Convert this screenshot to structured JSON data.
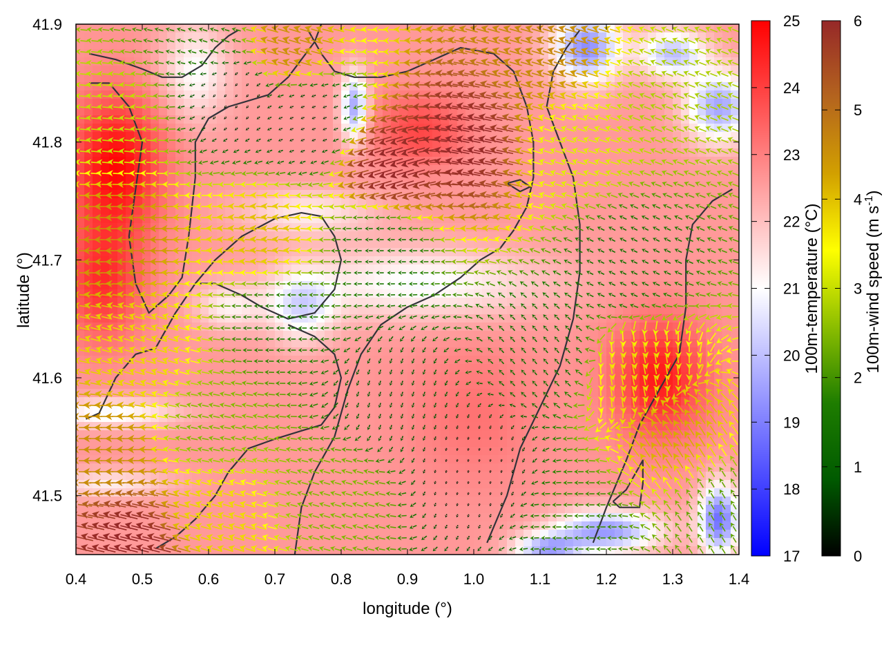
{
  "chart_data": {
    "type": "heatmap",
    "xlabel": "longitude (°)",
    "ylabel": "latitude (°)",
    "xlim": [
      0.4,
      1.4
    ],
    "ylim": [
      41.45,
      41.9
    ],
    "xticks": [
      "0.4",
      "0.5",
      "0.6",
      "0.7",
      "0.8",
      "0.9",
      "1.0",
      "1.1",
      "1.2",
      "1.3",
      "1.4"
    ],
    "yticks": [
      "41.5",
      "41.6",
      "41.7",
      "41.8",
      "41.9"
    ],
    "temperature_colorbar": {
      "label": "100m-temperature (°C)",
      "range": [
        17,
        25
      ],
      "ticks": [
        "17",
        "18",
        "19",
        "20",
        "21",
        "22",
        "23",
        "24",
        "25"
      ],
      "colors": {
        "low": "#0000ff",
        "mid": "#ffffff",
        "high": "#ff0000"
      }
    },
    "wind_colorbar": {
      "label": "100m-wind speed (m s",
      "label_superscript": "-1",
      "label_close": ")",
      "range": [
        0,
        6
      ],
      "ticks": [
        "0",
        "1",
        "2",
        "3",
        "4",
        "5",
        "6"
      ],
      "colors": [
        "#000000",
        "#005a00",
        "#1e7d00",
        "#8cbe00",
        "#ffff00",
        "#d2a000",
        "#b4641e",
        "#962828"
      ]
    },
    "temperature_field": {
      "base_c": 22.6,
      "blobs": [
        {
          "lon": 0.46,
          "lat": 41.78,
          "w": 0.07,
          "h": 0.06,
          "dT": 2.3
        },
        {
          "lon": 0.44,
          "lat": 41.68,
          "w": 0.06,
          "h": 0.05,
          "dT": 1.6
        },
        {
          "lon": 1.28,
          "lat": 41.6,
          "w": 0.07,
          "h": 0.05,
          "dT": 2.0
        },
        {
          "lon": 0.92,
          "lat": 41.81,
          "w": 0.07,
          "h": 0.03,
          "dT": 1.3
        },
        {
          "lon": 1.0,
          "lat": 41.57,
          "w": 0.1,
          "h": 0.06,
          "dT": 0.6
        },
        {
          "lon": 0.58,
          "lat": 41.86,
          "w": 0.05,
          "h": 0.04,
          "dT": -1.6
        },
        {
          "lon": 0.92,
          "lat": 41.68,
          "w": 0.18,
          "h": 0.03,
          "dT": -1.7
        },
        {
          "lon": 0.75,
          "lat": 41.74,
          "w": 0.1,
          "h": 0.02,
          "dT": -1.3
        },
        {
          "lon": 0.74,
          "lat": 41.66,
          "w": 0.05,
          "h": 0.03,
          "dT": -2.0
        },
        {
          "lon": 0.45,
          "lat": 41.57,
          "w": 0.1,
          "h": 0.012,
          "dT": -1.8
        },
        {
          "lon": 0.45,
          "lat": 41.51,
          "w": 0.09,
          "h": 0.012,
          "dT": -1.3
        },
        {
          "lon": 1.17,
          "lat": 41.88,
          "w": 0.05,
          "h": 0.03,
          "dT": -3.4
        },
        {
          "lon": 1.37,
          "lat": 41.83,
          "w": 0.05,
          "h": 0.03,
          "dT": -3.0
        },
        {
          "lon": 1.3,
          "lat": 41.875,
          "w": 0.05,
          "h": 0.02,
          "dT": -2.6
        },
        {
          "lon": 0.82,
          "lat": 41.83,
          "w": 0.02,
          "h": 0.03,
          "dT": -3.0
        },
        {
          "lon": 1.2,
          "lat": 41.47,
          "w": 0.08,
          "h": 0.018,
          "dT": -3.2
        },
        {
          "lon": 1.37,
          "lat": 41.48,
          "w": 0.03,
          "h": 0.03,
          "dT": -3.8
        },
        {
          "lon": 1.11,
          "lat": 41.455,
          "w": 0.05,
          "h": 0.012,
          "dT": -2.8
        },
        {
          "lon": 0.63,
          "lat": 41.66,
          "w": 0.05,
          "h": 0.02,
          "dT": -1.3
        }
      ]
    },
    "wind_field": {
      "vectors": [
        {
          "lon": 0.49,
          "lat": 41.46,
          "speed": 6.0,
          "u": -1.0,
          "v": 0.25
        },
        {
          "lon": 0.45,
          "lat": 41.54,
          "speed": 4.5,
          "u": -1.0,
          "v": 0.0
        },
        {
          "lon": 0.5,
          "lat": 41.62,
          "speed": 3.8,
          "u": -1.0,
          "v": 0.3
        },
        {
          "lon": 0.47,
          "lat": 41.72,
          "speed": 4.5,
          "u": -1.0,
          "v": 0.0
        },
        {
          "lon": 0.46,
          "lat": 41.82,
          "speed": 3.0,
          "u": -1.0,
          "v": 0.1
        },
        {
          "lon": 0.7,
          "lat": 41.65,
          "speed": 1.7,
          "u": -1.0,
          "v": 0.0
        },
        {
          "lon": 0.68,
          "lat": 41.72,
          "speed": 4.0,
          "u": -1.0,
          "v": 0.1
        },
        {
          "lon": 0.64,
          "lat": 41.84,
          "speed": 0.3,
          "u": -0.5,
          "v": -0.5
        },
        {
          "lon": 0.75,
          "lat": 41.82,
          "speed": 0.5,
          "u": -0.7,
          "v": -0.3
        },
        {
          "lon": 0.88,
          "lat": 41.78,
          "speed": 6.0,
          "u": -1.0,
          "v": -0.3
        },
        {
          "lon": 0.99,
          "lat": 41.8,
          "speed": 6.0,
          "u": -1.0,
          "v": 0.2
        },
        {
          "lon": 0.86,
          "lat": 41.71,
          "speed": 1.5,
          "u": -1.0,
          "v": 0.0
        },
        {
          "lon": 0.88,
          "lat": 41.58,
          "speed": 0.8,
          "u": -0.3,
          "v": -0.9
        },
        {
          "lon": 1.0,
          "lat": 41.52,
          "speed": 0.2,
          "u": -0.2,
          "v": -0.9
        },
        {
          "lon": 1.1,
          "lat": 41.62,
          "speed": 1.3,
          "u": -0.6,
          "v": 0.7
        },
        {
          "lon": 1.25,
          "lat": 41.6,
          "speed": 3.8,
          "u": 0.2,
          "v": -1.0
        },
        {
          "lon": 1.3,
          "lat": 41.55,
          "speed": 4.2,
          "u": -0.5,
          "v": 0.8
        },
        {
          "lon": 1.23,
          "lat": 41.7,
          "speed": 1.4,
          "u": -1.0,
          "v": 0.5
        },
        {
          "lon": 1.15,
          "lat": 41.79,
          "speed": 3.2,
          "u": -1.0,
          "v": 0.3
        },
        {
          "lon": 1.3,
          "lat": 41.84,
          "speed": 2.8,
          "u": -1.0,
          "v": 0.4
        },
        {
          "lon": 1.1,
          "lat": 41.88,
          "speed": 4.6,
          "u": -1.0,
          "v": 0.3
        },
        {
          "lon": 0.72,
          "lat": 41.88,
          "speed": 4.5,
          "u": -1.0,
          "v": 0.3
        },
        {
          "lon": 0.6,
          "lat": 41.89,
          "speed": 1.8,
          "u": -1.0,
          "v": 0.3
        },
        {
          "lon": 0.8,
          "lat": 41.5,
          "speed": 2.5,
          "u": -1.0,
          "v": 0.3
        },
        {
          "lon": 1.15,
          "lat": 41.48,
          "speed": 1.9,
          "u": -1.0,
          "v": 0.0
        },
        {
          "lon": 1.37,
          "lat": 41.49,
          "speed": 2.2,
          "u": -0.5,
          "v": 0.8
        },
        {
          "lon": 0.6,
          "lat": 41.56,
          "speed": 2.5,
          "u": -1.0,
          "v": 0.2
        },
        {
          "lon": 0.6,
          "lat": 41.48,
          "speed": 3.8,
          "u": -1.0,
          "v": 0.3
        }
      ]
    },
    "contours": [
      [
        [
          0.415,
          41.565
        ],
        [
          0.435,
          41.57
        ],
        [
          0.46,
          41.6
        ],
        [
          0.49,
          41.62
        ],
        [
          0.52,
          41.625
        ],
        [
          0.55,
          41.655
        ],
        [
          0.58,
          41.68
        ],
        [
          0.61,
          41.7
        ],
        [
          0.65,
          41.72
        ],
        [
          0.7,
          41.735
        ],
        [
          0.74,
          41.74
        ],
        [
          0.77,
          41.737
        ],
        [
          0.79,
          41.72
        ],
        [
          0.8,
          41.7
        ],
        [
          0.79,
          41.675
        ],
        [
          0.76,
          41.655
        ],
        [
          0.72,
          41.65
        ],
        [
          0.68,
          41.66
        ],
        [
          0.65,
          41.67
        ],
        [
          0.61,
          41.68
        ],
        [
          0.58,
          41.68
        ]
      ],
      [
        [
          0.72,
          41.645
        ],
        [
          0.76,
          41.635
        ],
        [
          0.79,
          41.62
        ],
        [
          0.8,
          41.6
        ],
        [
          0.79,
          41.575
        ],
        [
          0.77,
          41.56
        ],
        [
          0.74,
          41.555
        ],
        [
          0.7,
          41.548
        ],
        [
          0.66,
          41.54
        ],
        [
          0.63,
          41.52
        ],
        [
          0.61,
          41.5
        ],
        [
          0.58,
          41.48
        ],
        [
          0.55,
          41.465
        ],
        [
          0.52,
          41.455
        ]
      ],
      [
        [
          0.42,
          41.875
        ],
        [
          0.46,
          41.87
        ],
        [
          0.5,
          41.862
        ],
        [
          0.53,
          41.855
        ],
        [
          0.56,
          41.855
        ],
        [
          0.59,
          41.865
        ],
        [
          0.61,
          41.88
        ],
        [
          0.63,
          41.89
        ],
        [
          0.645,
          41.895
        ]
      ],
      [
        [
          0.42,
          41.85
        ],
        [
          0.45,
          41.85
        ],
        [
          0.48,
          41.83
        ],
        [
          0.5,
          41.8
        ],
        [
          0.49,
          41.76
        ],
        [
          0.48,
          41.72
        ],
        [
          0.49,
          41.68
        ],
        [
          0.51,
          41.655
        ],
        [
          0.54,
          41.67
        ],
        [
          0.56,
          41.685
        ],
        [
          0.57,
          41.72
        ],
        [
          0.58,
          41.77
        ],
        [
          0.58,
          41.8
        ],
        [
          0.6,
          41.82
        ],
        [
          0.63,
          41.83
        ],
        [
          0.66,
          41.835
        ],
        [
          0.69,
          41.84
        ],
        [
          0.72,
          41.855
        ],
        [
          0.74,
          41.87
        ],
        [
          0.76,
          41.885
        ],
        [
          0.77,
          41.9
        ]
      ],
      [
        [
          0.73,
          41.45
        ],
        [
          0.74,
          41.49
        ],
        [
          0.76,
          41.52
        ],
        [
          0.79,
          41.55
        ],
        [
          0.81,
          41.59
        ],
        [
          0.83,
          41.62
        ],
        [
          0.86,
          41.645
        ],
        [
          0.9,
          41.66
        ],
        [
          0.94,
          41.67
        ],
        [
          0.98,
          41.685
        ],
        [
          1.01,
          41.7
        ],
        [
          1.04,
          41.71
        ],
        [
          1.06,
          41.725
        ],
        [
          1.08,
          41.745
        ],
        [
          1.09,
          41.77
        ],
        [
          1.09,
          41.8
        ],
        [
          1.08,
          41.83
        ],
        [
          1.06,
          41.86
        ],
        [
          1.03,
          41.875
        ],
        [
          0.98,
          41.88
        ],
        [
          0.94,
          41.87
        ],
        [
          0.9,
          41.86
        ],
        [
          0.86,
          41.855
        ],
        [
          0.82,
          41.855
        ],
        [
          0.79,
          41.86
        ],
        [
          0.77,
          41.875
        ],
        [
          0.75,
          41.895
        ]
      ],
      [
        [
          1.02,
          41.46
        ],
        [
          1.05,
          41.5
        ],
        [
          1.07,
          41.54
        ],
        [
          1.1,
          41.575
        ],
        [
          1.13,
          41.61
        ],
        [
          1.15,
          41.65
        ],
        [
          1.16,
          41.69
        ],
        [
          1.16,
          41.73
        ],
        [
          1.15,
          41.77
        ],
        [
          1.13,
          41.8
        ],
        [
          1.11,
          41.83
        ],
        [
          1.12,
          41.86
        ],
        [
          1.14,
          41.88
        ],
        [
          1.16,
          41.895
        ]
      ],
      [
        [
          1.39,
          41.76
        ],
        [
          1.36,
          41.75
        ],
        [
          1.33,
          41.73
        ],
        [
          1.32,
          41.7
        ],
        [
          1.32,
          41.66
        ],
        [
          1.31,
          41.62
        ],
        [
          1.29,
          41.6
        ],
        [
          1.27,
          41.58
        ],
        [
          1.25,
          41.56
        ],
        [
          1.23,
          41.53
        ],
        [
          1.2,
          41.49
        ],
        [
          1.18,
          41.46
        ]
      ],
      [
        [
          1.21,
          41.495
        ],
        [
          1.23,
          41.505
        ],
        [
          1.25,
          41.525
        ],
        [
          1.255,
          41.53
        ],
        [
          1.255,
          41.51
        ],
        [
          1.25,
          41.49
        ],
        [
          1.22,
          41.49
        ],
        [
          1.21,
          41.495
        ]
      ],
      [
        [
          1.05,
          41.765
        ],
        [
          1.07,
          41.768
        ],
        [
          1.085,
          41.762
        ],
        [
          1.07,
          41.758
        ],
        [
          1.05,
          41.765
        ]
      ]
    ]
  }
}
